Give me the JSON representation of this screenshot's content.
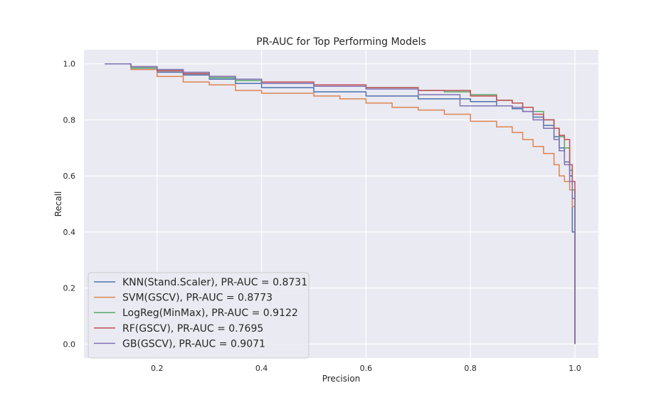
{
  "chart_data": {
    "type": "line",
    "title": "PR-AUC for Top Performing Models",
    "xlabel": "Precision",
    "ylabel": "Recall",
    "xlim": [
      0.06,
      1.045
    ],
    "ylim": [
      -0.05,
      1.05
    ],
    "xticks": [
      0.2,
      0.4,
      0.6,
      0.8,
      1.0
    ],
    "xtick_labels": [
      "0.2",
      "0.4",
      "0.6",
      "0.8",
      "1.0"
    ],
    "yticks": [
      0.0,
      0.2,
      0.4,
      0.6,
      0.8,
      1.0
    ],
    "ytick_labels": [
      "0.0",
      "0.2",
      "0.4",
      "0.6",
      "0.8",
      "1.0"
    ],
    "grid": true,
    "legend_position": "lower-left",
    "series": [
      {
        "name": "KNN(Stand.Scaler), PR-AUC = 0.8731",
        "color": "#4c72b0",
        "x": [
          0.1,
          0.15,
          0.2,
          0.25,
          0.3,
          0.35,
          0.4,
          0.5,
          0.6,
          0.7,
          0.8,
          0.85,
          0.88,
          0.9,
          0.92,
          0.94,
          0.96,
          0.97,
          0.98,
          0.99,
          0.995,
          1.0,
          1.0
        ],
        "y": [
          1.0,
          0.985,
          0.97,
          0.96,
          0.945,
          0.93,
          0.915,
          0.9,
          0.885,
          0.875,
          0.865,
          0.85,
          0.84,
          0.83,
          0.81,
          0.78,
          0.74,
          0.7,
          0.65,
          0.6,
          0.4,
          0.1,
          0.0
        ]
      },
      {
        "name": "SVM(GSCV), PR-AUC = 0.8773",
        "color": "#dd8452",
        "x": [
          0.1,
          0.15,
          0.2,
          0.25,
          0.3,
          0.35,
          0.4,
          0.5,
          0.55,
          0.6,
          0.65,
          0.7,
          0.75,
          0.8,
          0.85,
          0.88,
          0.9,
          0.92,
          0.94,
          0.96,
          0.97,
          0.98,
          0.99,
          0.995,
          1.0,
          1.0
        ],
        "y": [
          1.0,
          0.98,
          0.955,
          0.935,
          0.925,
          0.905,
          0.895,
          0.885,
          0.875,
          0.86,
          0.845,
          0.835,
          0.82,
          0.795,
          0.775,
          0.755,
          0.73,
          0.705,
          0.68,
          0.64,
          0.6,
          0.58,
          0.55,
          0.49,
          0.44,
          0.0
        ]
      },
      {
        "name": "LogReg(MinMax), PR-AUC = 0.9122",
        "color": "#55a868",
        "x": [
          0.1,
          0.15,
          0.2,
          0.25,
          0.3,
          0.35,
          0.4,
          0.5,
          0.6,
          0.7,
          0.75,
          0.8,
          0.85,
          0.88,
          0.9,
          0.92,
          0.94,
          0.96,
          0.97,
          0.98,
          0.99,
          0.995,
          1.0,
          1.0
        ],
        "y": [
          1.0,
          0.985,
          0.975,
          0.965,
          0.95,
          0.94,
          0.93,
          0.92,
          0.915,
          0.905,
          0.9,
          0.89,
          0.87,
          0.86,
          0.845,
          0.83,
          0.8,
          0.77,
          0.74,
          0.7,
          0.62,
          0.55,
          0.4,
          0.0
        ]
      },
      {
        "name": "RF(GSCV), PR-AUC = 0.7695",
        "color": "#c44e52",
        "x": [
          0.1,
          0.15,
          0.2,
          0.25,
          0.3,
          0.35,
          0.4,
          0.5,
          0.6,
          0.7,
          0.8,
          0.85,
          0.88,
          0.9,
          0.92,
          0.94,
          0.96,
          0.97,
          0.98,
          0.99,
          0.995,
          1.0,
          1.0
        ],
        "y": [
          1.0,
          0.99,
          0.975,
          0.965,
          0.955,
          0.945,
          0.935,
          0.925,
          0.915,
          0.905,
          0.885,
          0.87,
          0.86,
          0.845,
          0.82,
          0.8,
          0.77,
          0.745,
          0.73,
          0.64,
          0.58,
          0.5,
          0.0
        ]
      },
      {
        "name": "GB(GSCV), PR-AUC = 0.9071",
        "color": "#8172b3",
        "x": [
          0.1,
          0.15,
          0.2,
          0.25,
          0.3,
          0.35,
          0.4,
          0.5,
          0.6,
          0.7,
          0.78,
          0.8,
          0.85,
          0.88,
          0.9,
          0.92,
          0.94,
          0.96,
          0.97,
          0.98,
          0.99,
          0.995,
          1.0,
          1.0
        ],
        "y": [
          1.0,
          0.99,
          0.98,
          0.97,
          0.955,
          0.945,
          0.93,
          0.92,
          0.91,
          0.89,
          0.85,
          0.85,
          0.85,
          0.845,
          0.83,
          0.8,
          0.77,
          0.73,
          0.69,
          0.64,
          0.58,
          0.52,
          0.54,
          0.0
        ]
      }
    ]
  }
}
